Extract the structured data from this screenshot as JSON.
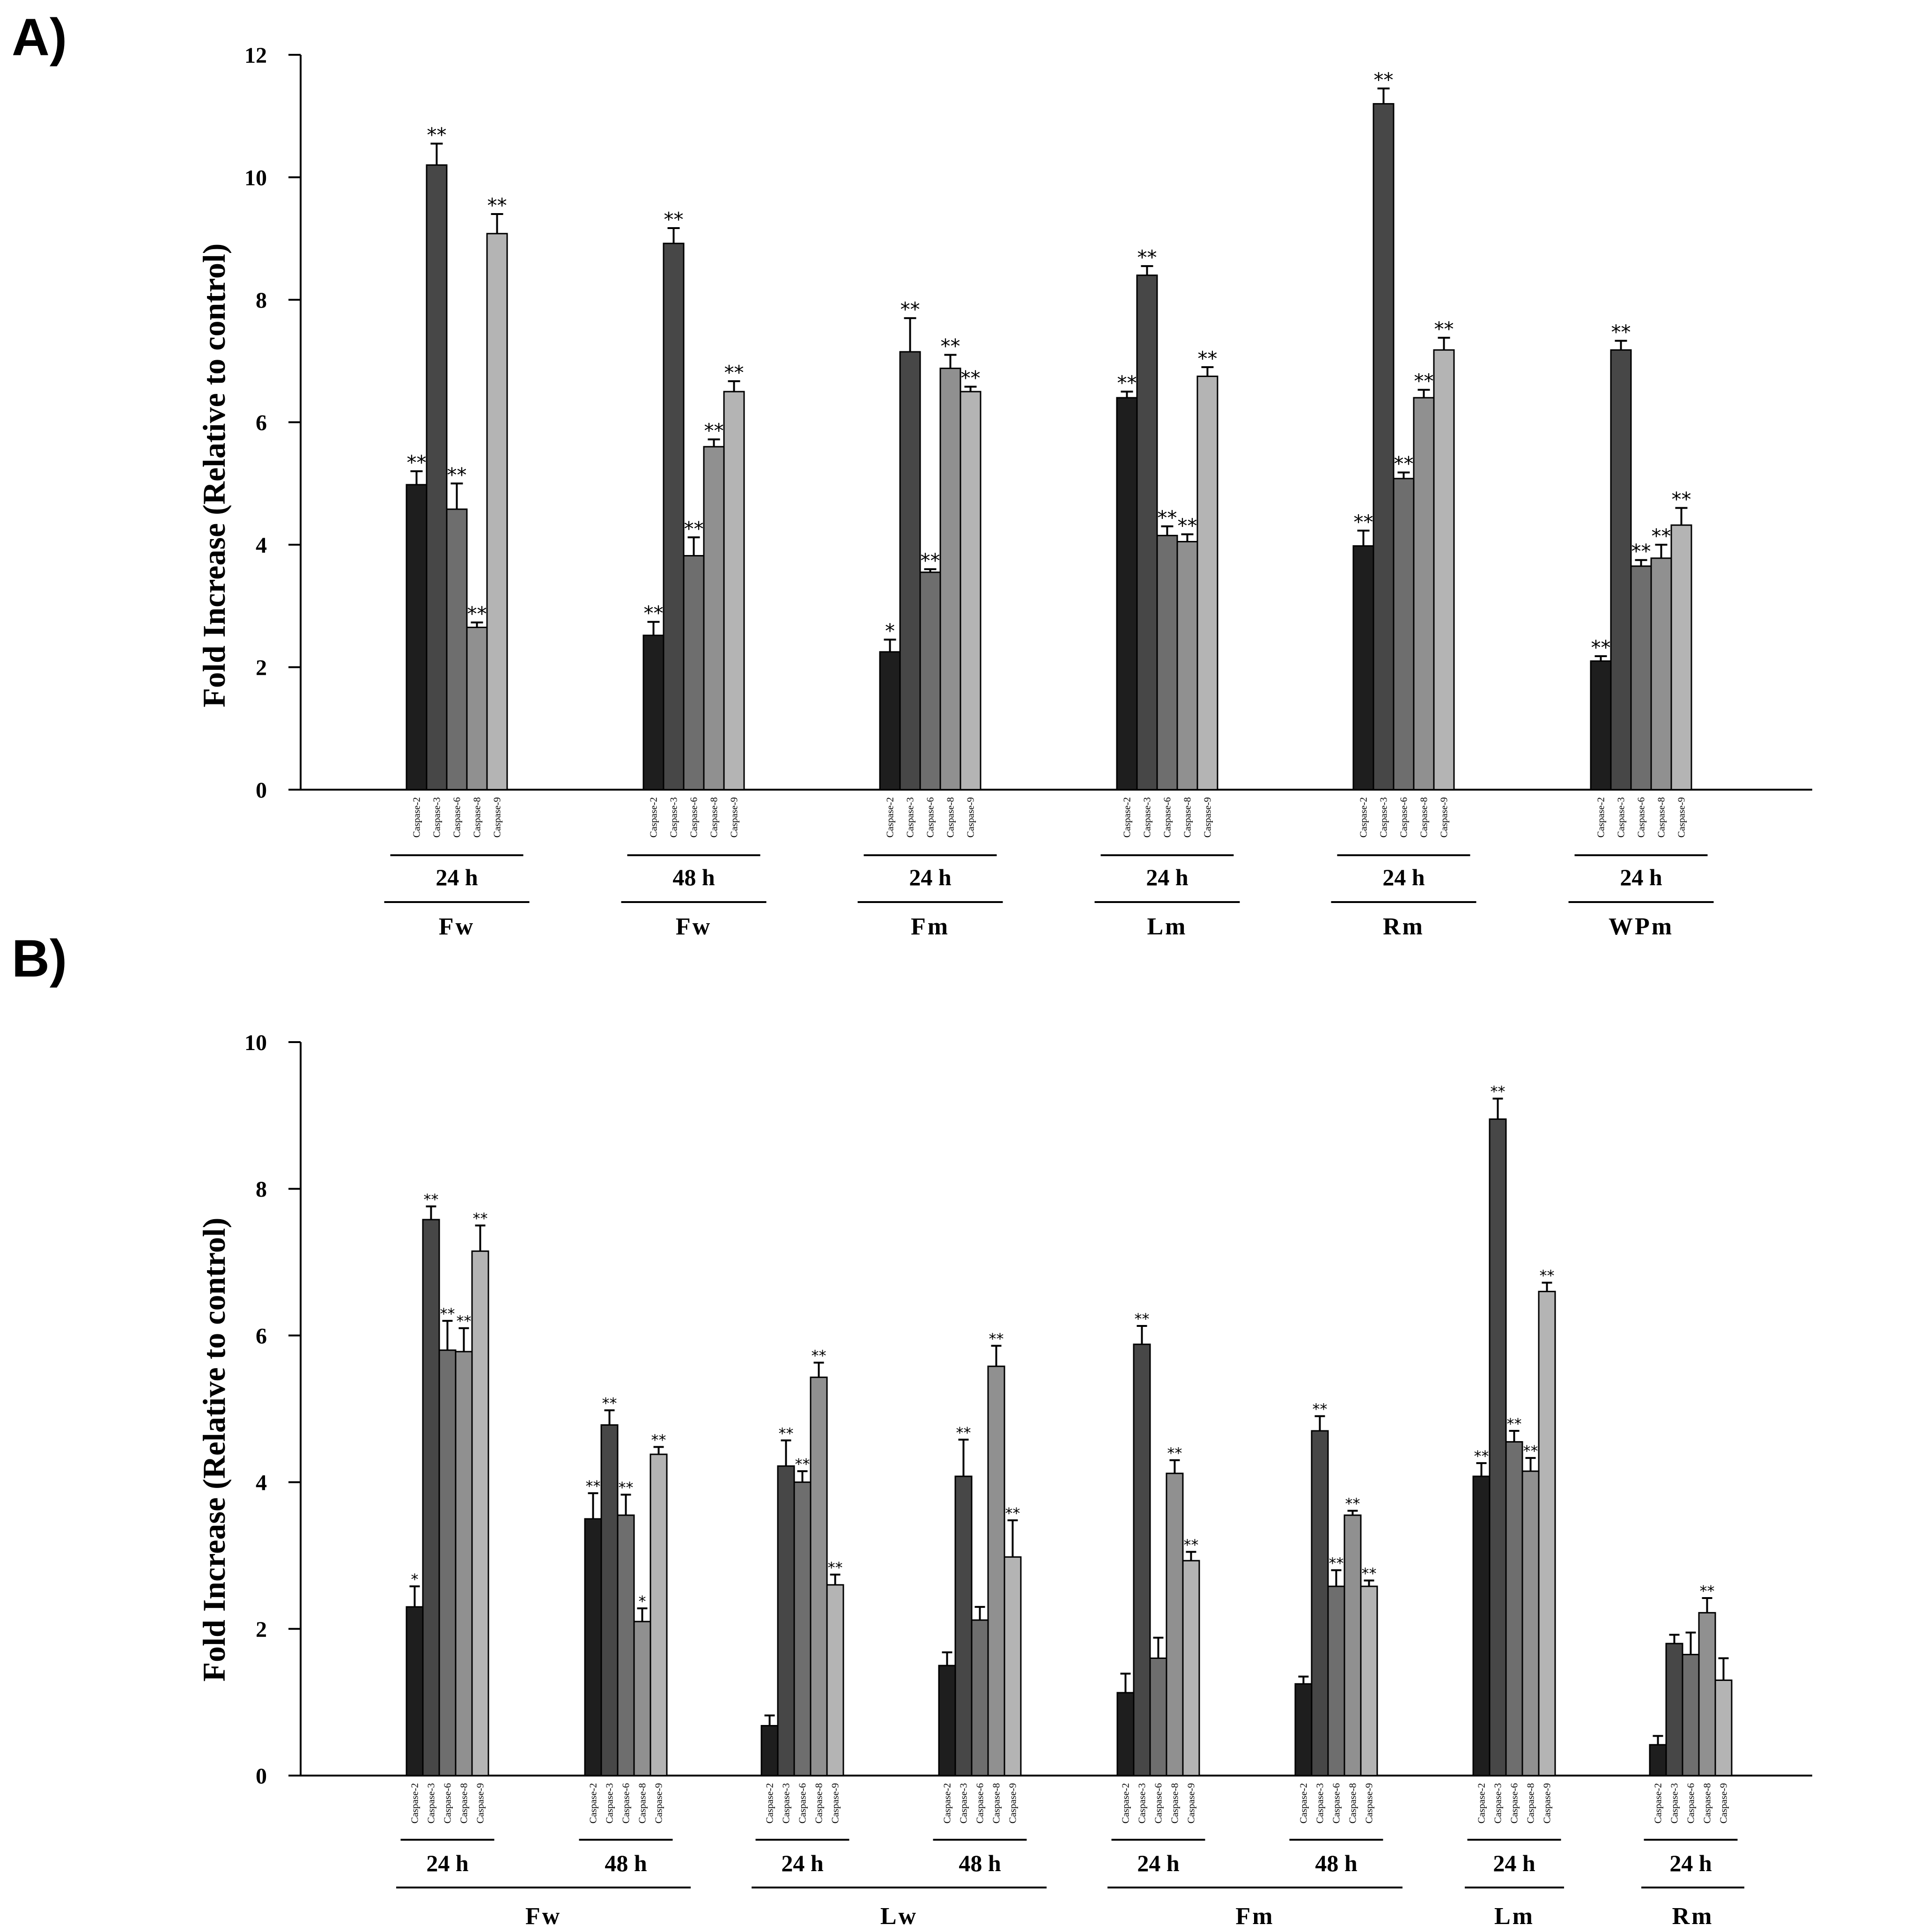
{
  "panels": [
    {
      "label": "A)",
      "ylabel": "Fold Increase (Relative to control)",
      "yticks": [
        "0",
        "2",
        "4",
        "6",
        "8",
        "10",
        "12"
      ],
      "categories": [
        "Caspase-2",
        "Caspase-3",
        "Caspase-6",
        "Caspase-8",
        "Caspase-9"
      ],
      "groups": [
        {
          "time": "24 h",
          "tissue": "Fw",
          "values": [
            4.98,
            10.2,
            4.58,
            2.65,
            9.08
          ],
          "errors": [
            0.22,
            0.35,
            0.42,
            0.08,
            0.32
          ],
          "sig": [
            "**",
            "**",
            "**",
            "**",
            "**"
          ]
        },
        {
          "time": "48 h",
          "tissue": "Fw",
          "values": [
            2.52,
            8.92,
            3.82,
            5.6,
            6.5
          ],
          "errors": [
            0.22,
            0.25,
            0.3,
            0.12,
            0.17
          ],
          "sig": [
            "**",
            "**",
            "**",
            "**",
            "**"
          ]
        },
        {
          "time": "24 h",
          "tissue": "Fm",
          "values": [
            2.25,
            7.15,
            3.55,
            6.88,
            6.5
          ],
          "errors": [
            0.2,
            0.55,
            0.05,
            0.22,
            0.08
          ],
          "sig": [
            "*",
            "**",
            "**",
            "**",
            "**"
          ]
        },
        {
          "time": "24 h",
          "tissue": "Lm",
          "values": [
            6.4,
            8.4,
            4.15,
            4.05,
            6.75
          ],
          "errors": [
            0.1,
            0.15,
            0.15,
            0.12,
            0.15
          ],
          "sig": [
            "**",
            "**",
            "**",
            "**",
            "**"
          ]
        },
        {
          "time": "24 h",
          "tissue": "Rm",
          "values": [
            3.98,
            11.2,
            5.08,
            6.4,
            7.18
          ],
          "errors": [
            0.25,
            0.25,
            0.1,
            0.13,
            0.2
          ],
          "sig": [
            "**",
            "**",
            "**",
            "**",
            "**"
          ]
        },
        {
          "time": "24 h",
          "tissue": "WPm",
          "values": [
            2.1,
            7.18,
            3.65,
            3.78,
            4.32
          ],
          "errors": [
            0.08,
            0.15,
            0.1,
            0.22,
            0.28
          ],
          "sig": [
            "**",
            "**",
            "**",
            "**",
            "**"
          ]
        }
      ]
    },
    {
      "label": "B)",
      "ylabel": "Fold Increase (Relative to control)",
      "yticks": [
        "0",
        "2",
        "4",
        "6",
        "8",
        "10"
      ],
      "categories": [
        "Caspase-2",
        "Caspase-3",
        "Caspase-6",
        "Caspase-8",
        "Caspase-9"
      ],
      "groups": [
        {
          "time": "24 h",
          "values": [
            2.3,
            7.58,
            5.8,
            5.78,
            7.15
          ],
          "errors": [
            0.28,
            0.18,
            0.4,
            0.32,
            0.35
          ],
          "sig": [
            "*",
            "**",
            "**",
            "**",
            "**"
          ]
        },
        {
          "time": "48 h",
          "values": [
            3.5,
            4.78,
            3.55,
            2.1,
            4.38
          ],
          "errors": [
            0.35,
            0.2,
            0.28,
            0.18,
            0.1
          ],
          "sig": [
            "**",
            "**",
            "**",
            "*",
            "**"
          ]
        },
        {
          "time": "24 h",
          "values": [
            0.68,
            4.22,
            4.0,
            5.43,
            2.6
          ],
          "errors": [
            0.14,
            0.35,
            0.15,
            0.2,
            0.14
          ],
          "sig": [
            "",
            "**",
            "**",
            "**",
            "**"
          ]
        },
        {
          "time": "48 h",
          "values": [
            1.5,
            4.08,
            2.12,
            5.58,
            2.98
          ],
          "errors": [
            0.18,
            0.5,
            0.18,
            0.28,
            0.5
          ],
          "sig": [
            "",
            "**",
            "",
            "**",
            "**"
          ]
        },
        {
          "time": "24 h",
          "values": [
            1.13,
            5.88,
            1.6,
            4.12,
            2.93
          ],
          "errors": [
            0.26,
            0.25,
            0.28,
            0.18,
            0.12
          ],
          "sig": [
            "",
            "**",
            "",
            "**",
            "**"
          ]
        },
        {
          "time": "48 h",
          "values": [
            1.25,
            4.7,
            2.58,
            3.55,
            2.58
          ],
          "errors": [
            0.1,
            0.2,
            0.22,
            0.06,
            0.08
          ],
          "sig": [
            "",
            "**",
            "**",
            "**",
            "**"
          ]
        },
        {
          "time": "24 h",
          "values": [
            4.08,
            8.95,
            4.55,
            4.15,
            6.6
          ],
          "errors": [
            0.18,
            0.28,
            0.15,
            0.18,
            0.12
          ],
          "sig": [
            "**",
            "**",
            "**",
            "**",
            "**"
          ]
        },
        {
          "time": "24 h",
          "values": [
            0.42,
            1.8,
            1.65,
            2.22,
            1.3
          ],
          "errors": [
            0.12,
            0.12,
            0.3,
            0.2,
            0.3
          ],
          "sig": [
            "",
            "",
            "",
            "**",
            ""
          ]
        }
      ],
      "tissues": [
        "Fw",
        "Lw",
        "Fm",
        "Lm",
        "Rm"
      ]
    }
  ],
  "colors": [
    "#1e1e1e",
    "#474747",
    "#6e6e6e",
    "#909090",
    "#b4b4b4"
  ],
  "chart_data": [
    {
      "type": "bar",
      "title": "A)",
      "xlabel": "",
      "ylabel": "Fold Increase (Relative to control)",
      "ylim": [
        0,
        12
      ],
      "categories": [
        "Fw 24 h",
        "Fw 48 h",
        "Fm 24 h",
        "Lm 24 h",
        "Rm 24 h",
        "WPm 24 h"
      ],
      "series": [
        {
          "name": "Caspase-2",
          "values": [
            4.98,
            2.52,
            2.25,
            6.4,
            3.98,
            2.1
          ]
        },
        {
          "name": "Caspase-3",
          "values": [
            10.2,
            8.92,
            7.15,
            8.4,
            11.2,
            7.18
          ]
        },
        {
          "name": "Caspase-6",
          "values": [
            4.58,
            3.82,
            3.55,
            4.15,
            5.08,
            3.65
          ]
        },
        {
          "name": "Caspase-8",
          "values": [
            2.65,
            5.6,
            6.88,
            4.05,
            6.4,
            3.78
          ]
        },
        {
          "name": "Caspase-9",
          "values": [
            9.08,
            6.5,
            6.5,
            6.75,
            7.18,
            4.32
          ]
        }
      ]
    },
    {
      "type": "bar",
      "title": "B)",
      "xlabel": "",
      "ylabel": "Fold Increase (Relative to control)",
      "ylim": [
        0,
        10
      ],
      "categories": [
        "Fw 24 h",
        "Fw 48 h",
        "Lw 24 h",
        "Lw 48 h",
        "Fm 24 h",
        "Fm 48 h",
        "Lm 24 h",
        "Rm 24 h"
      ],
      "series": [
        {
          "name": "Caspase-2",
          "values": [
            2.3,
            3.5,
            0.68,
            1.5,
            1.13,
            1.25,
            4.08,
            0.42
          ]
        },
        {
          "name": "Caspase-3",
          "values": [
            7.58,
            4.78,
            4.22,
            4.08,
            5.88,
            4.7,
            8.95,
            1.8
          ]
        },
        {
          "name": "Caspase-6",
          "values": [
            5.8,
            3.55,
            4.0,
            2.12,
            1.6,
            2.58,
            4.55,
            1.65
          ]
        },
        {
          "name": "Caspase-8",
          "values": [
            5.78,
            2.1,
            5.43,
            5.58,
            4.12,
            3.55,
            4.15,
            2.22
          ]
        },
        {
          "name": "Caspase-9",
          "values": [
            7.15,
            4.38,
            2.6,
            2.98,
            2.93,
            2.58,
            6.6,
            1.3
          ]
        }
      ]
    }
  ]
}
